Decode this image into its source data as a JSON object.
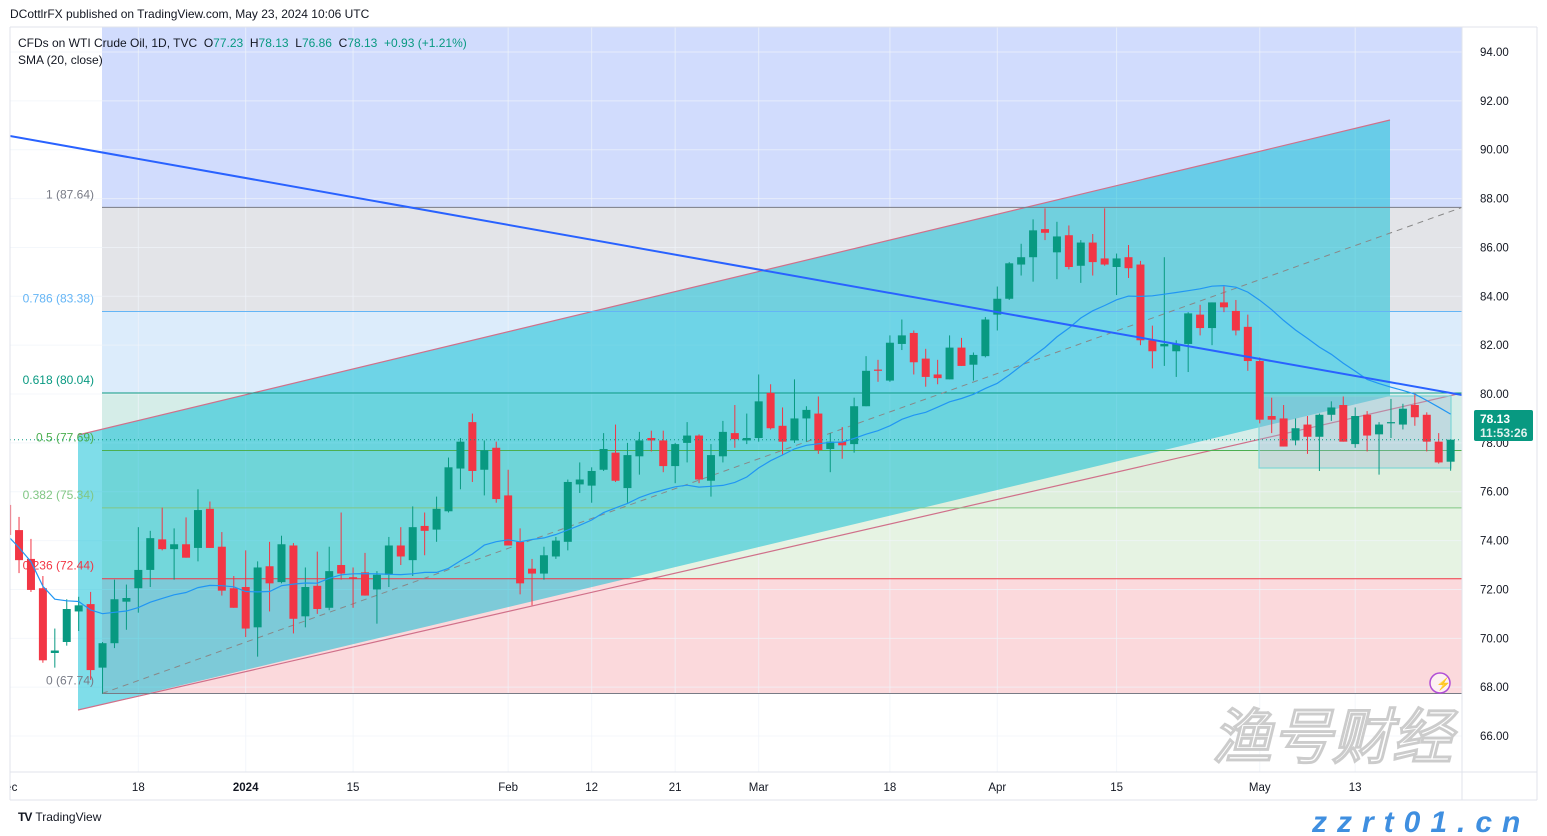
{
  "header": {
    "published": "DCottlrFX published on TradingView.com, May 23, 2024 10:06 UTC"
  },
  "legend": {
    "symbol": "CFDs on WTI Crude Oil, 1D, TVC",
    "open_label": "O",
    "open": "77.23",
    "high_label": "H",
    "high": "78.13",
    "low_label": "L",
    "low": "76.86",
    "close_label": "C",
    "close": "78.13",
    "change": "+0.93 (+1.21%)",
    "indicator": "SMA (20, close)"
  },
  "last_price": {
    "price": "78.13",
    "countdown": "11:53:26",
    "color": "#089981"
  },
  "footer": {
    "brand": "TradingView"
  },
  "watermark": {
    "logo_text": "渔号财经",
    "site": "zzrt01.cn"
  },
  "colors": {
    "up": "#089981",
    "down": "#f23645",
    "sma": "#2196f3",
    "trendline": "#2962ff",
    "channel": "#00bcd4"
  },
  "chart_data": {
    "type": "candlestick",
    "title": "CFDs on WTI Crude Oil, 1D, TVC",
    "ylim": [
      66,
      95
    ],
    "grid": true,
    "price_ticks": [
      "94.00",
      "92.00",
      "90.00",
      "88.00",
      "86.00",
      "84.00",
      "82.00",
      "80.00",
      "78.00",
      "76.00",
      "74.00",
      "72.00",
      "70.00",
      "68.00",
      "66.00"
    ],
    "time_ticks": [
      {
        "label": "Dec",
        "date": "2023-12-01",
        "bold": false
      },
      {
        "label": "18",
        "date": "2023-12-18",
        "bold": false
      },
      {
        "label": "2024",
        "date": "2024-01-02",
        "bold": true
      },
      {
        "label": "15",
        "date": "2024-01-15",
        "bold": false
      },
      {
        "label": "Feb",
        "date": "2024-02-01",
        "bold": false
      },
      {
        "label": "12",
        "date": "2024-02-12",
        "bold": false
      },
      {
        "label": "21",
        "date": "2024-02-21",
        "bold": false
      },
      {
        "label": "Mar",
        "date": "2024-03-01",
        "bold": false
      },
      {
        "label": "18",
        "date": "2024-03-18",
        "bold": false
      },
      {
        "label": "Apr",
        "date": "2024-04-01",
        "bold": false
      },
      {
        "label": "15",
        "date": "2024-04-15",
        "bold": false
      },
      {
        "label": "May",
        "date": "2024-05-01",
        "bold": false
      },
      {
        "label": "13",
        "date": "2024-05-13",
        "bold": false
      }
    ],
    "indicator": {
      "name": "SMA (20, close)",
      "period": 20
    },
    "fib_levels": [
      {
        "ratio": "1",
        "price": 87.64,
        "label": "1 (87.64)",
        "color": "#787b86",
        "fill": "#e3e4e8"
      },
      {
        "ratio": "0.786",
        "price": 83.38,
        "label": "0.786 (83.38)",
        "color": "#64b5f6",
        "fill": "#dcecfb"
      },
      {
        "ratio": "0.618",
        "price": 80.04,
        "label": "0.618 (80.04)",
        "color": "#089981",
        "fill": "#d5ede8"
      },
      {
        "ratio": "0.5",
        "price": 77.69,
        "label": "0.5 (77.69)",
        "color": "#4caf50",
        "fill": "#dfefdd"
      },
      {
        "ratio": "0.382",
        "price": 75.34,
        "label": "0.382 (75.34)",
        "color": "#81c784",
        "fill": "#e6f3e3"
      },
      {
        "ratio": "0.236",
        "price": 72.44,
        "label": "0.236 (72.44)",
        "color": "#f23645",
        "fill": "#fbd9dc"
      },
      {
        "ratio": "0",
        "price": 67.74,
        "label": "0 (67.74)",
        "color": "#787b86",
        "fill": null
      }
    ],
    "fib_upper_fill": "#d1dcfd",
    "bars_columns": [
      "date",
      "open",
      "high",
      "low",
      "close"
    ],
    "bars": [
      [
        "2023-12-01",
        75.46,
        75.5,
        74.0,
        74.23
      ],
      [
        "2023-12-04",
        74.43,
        74.97,
        72.67,
        73.2
      ],
      [
        "2023-12-05",
        73.25,
        74.07,
        71.9,
        71.98
      ],
      [
        "2023-12-06",
        72.05,
        72.55,
        69.0,
        69.1
      ],
      [
        "2023-12-07",
        69.4,
        70.4,
        68.8,
        69.5
      ],
      [
        "2023-12-08",
        69.85,
        71.6,
        69.7,
        71.2
      ],
      [
        "2023-12-11",
        71.1,
        71.7,
        70.3,
        71.35
      ],
      [
        "2023-12-12",
        71.4,
        71.9,
        68.3,
        68.7
      ],
      [
        "2023-12-13",
        68.8,
        69.85,
        67.74,
        69.8
      ],
      [
        "2023-12-14",
        69.8,
        72.4,
        69.6,
        71.6
      ],
      [
        "2023-12-15",
        71.5,
        72.2,
        70.35,
        71.65
      ],
      [
        "2023-12-18",
        72.05,
        74.55,
        71.05,
        72.8
      ],
      [
        "2023-12-19",
        72.8,
        74.4,
        72.1,
        74.1
      ],
      [
        "2023-12-20",
        74.05,
        75.35,
        73.6,
        73.65
      ],
      [
        "2023-12-21",
        73.65,
        74.5,
        72.4,
        73.85
      ],
      [
        "2023-12-22",
        73.85,
        74.95,
        73.3,
        73.3
      ],
      [
        "2023-12-26",
        73.7,
        76.1,
        73.15,
        75.25
      ],
      [
        "2023-12-27",
        75.3,
        75.6,
        73.7,
        73.7
      ],
      [
        "2023-12-28",
        73.75,
        74.35,
        71.75,
        71.95
      ],
      [
        "2023-12-29",
        72.05,
        72.55,
        71.25,
        71.25
      ],
      [
        "2024-01-02",
        72.1,
        73.6,
        70.05,
        70.4
      ],
      [
        "2024-01-03",
        70.45,
        73.15,
        69.25,
        72.9
      ],
      [
        "2024-01-04",
        72.95,
        73.95,
        71.1,
        72.25
      ],
      [
        "2024-01-05",
        72.3,
        74.2,
        72.25,
        73.85
      ],
      [
        "2024-01-08",
        73.8,
        73.9,
        70.2,
        70.8
      ],
      [
        "2024-01-09",
        70.9,
        72.9,
        70.45,
        72.1
      ],
      [
        "2024-01-10",
        72.15,
        73.55,
        71.0,
        71.2
      ],
      [
        "2024-01-11",
        71.25,
        73.75,
        71.15,
        72.75
      ],
      [
        "2024-01-12",
        73.0,
        75.15,
        72.4,
        72.65
      ],
      [
        "2024-01-15",
        72.5,
        72.9,
        71.25,
        72.45
      ],
      [
        "2024-01-16",
        72.7,
        73.5,
        71.75,
        71.75
      ],
      [
        "2024-01-17",
        72.0,
        72.75,
        70.6,
        72.6
      ],
      [
        "2024-01-18",
        72.6,
        74.15,
        72.1,
        73.8
      ],
      [
        "2024-01-19",
        73.8,
        74.55,
        73.0,
        73.35
      ],
      [
        "2024-01-22",
        73.2,
        75.4,
        72.55,
        74.55
      ],
      [
        "2024-01-23",
        74.6,
        75.15,
        73.4,
        74.4
      ],
      [
        "2024-01-24",
        74.45,
        75.8,
        73.95,
        75.3
      ],
      [
        "2024-01-25",
        75.2,
        77.4,
        75.15,
        77.0
      ],
      [
        "2024-01-26",
        76.95,
        78.2,
        76.1,
        78.05
      ],
      [
        "2024-01-29",
        78.85,
        79.2,
        76.4,
        76.85
      ],
      [
        "2024-01-30",
        76.9,
        78.1,
        75.85,
        77.7
      ],
      [
        "2024-01-31",
        77.8,
        78.05,
        75.55,
        75.7
      ],
      [
        "2024-02-01",
        75.85,
        76.9,
        73.8,
        73.8
      ],
      [
        "2024-02-02",
        73.95,
        74.5,
        71.8,
        72.25
      ],
      [
        "2024-02-05",
        72.85,
        73.25,
        71.35,
        72.65
      ],
      [
        "2024-02-06",
        72.65,
        73.75,
        72.4,
        73.4
      ],
      [
        "2024-02-07",
        73.35,
        74.15,
        73.25,
        74.0
      ],
      [
        "2024-02-08",
        73.95,
        76.5,
        73.6,
        76.4
      ],
      [
        "2024-02-09",
        76.3,
        77.2,
        75.95,
        76.5
      ],
      [
        "2024-02-12",
        76.25,
        77.0,
        75.55,
        76.85
      ],
      [
        "2024-02-13",
        76.9,
        78.4,
        76.85,
        77.75
      ],
      [
        "2024-02-14",
        77.6,
        78.75,
        76.4,
        76.45
      ],
      [
        "2024-02-15",
        76.15,
        78.0,
        75.55,
        77.5
      ],
      [
        "2024-02-16",
        77.45,
        78.45,
        76.7,
        78.1
      ],
      [
        "2024-02-19",
        78.2,
        78.5,
        77.65,
        78.1
      ],
      [
        "2024-02-20",
        78.1,
        78.5,
        76.8,
        77.05
      ],
      [
        "2024-02-21",
        77.05,
        78.0,
        76.35,
        77.95
      ],
      [
        "2024-02-22",
        78.0,
        78.85,
        77.2,
        78.3
      ],
      [
        "2024-02-23",
        78.3,
        78.35,
        76.35,
        76.5
      ],
      [
        "2024-02-26",
        76.45,
        77.95,
        75.8,
        77.5
      ],
      [
        "2024-02-27",
        77.45,
        78.9,
        77.2,
        78.45
      ],
      [
        "2024-02-28",
        78.4,
        79.55,
        77.8,
        78.15
      ],
      [
        "2024-02-29",
        78.1,
        79.2,
        77.95,
        78.2
      ],
      [
        "2024-03-01",
        78.2,
        80.8,
        78.05,
        79.7
      ],
      [
        "2024-03-04",
        80.05,
        80.4,
        78.55,
        78.6
      ],
      [
        "2024-03-05",
        78.7,
        79.45,
        77.5,
        78.05
      ],
      [
        "2024-03-06",
        78.1,
        80.6,
        78.0,
        79.0
      ],
      [
        "2024-03-07",
        79.0,
        79.5,
        78.05,
        79.35
      ],
      [
        "2024-03-08",
        79.2,
        79.9,
        77.55,
        77.7
      ],
      [
        "2024-03-11",
        77.75,
        78.4,
        76.8,
        78.05
      ],
      [
        "2024-03-12",
        78.05,
        78.65,
        77.35,
        77.9
      ],
      [
        "2024-03-13",
        77.95,
        79.85,
        77.6,
        79.5
      ],
      [
        "2024-03-14",
        79.5,
        81.55,
        79.5,
        80.95
      ],
      [
        "2024-03-15",
        81.0,
        81.4,
        80.5,
        80.95
      ],
      [
        "2024-03-18",
        80.55,
        82.4,
        80.5,
        82.1
      ],
      [
        "2024-03-19",
        82.05,
        83.05,
        81.8,
        82.4
      ],
      [
        "2024-03-20",
        82.5,
        82.6,
        80.8,
        81.3
      ],
      [
        "2024-03-21",
        81.45,
        81.85,
        80.3,
        80.7
      ],
      [
        "2024-03-22",
        80.8,
        81.4,
        80.4,
        80.65
      ],
      [
        "2024-03-25",
        80.6,
        82.4,
        80.6,
        81.9
      ],
      [
        "2024-03-26",
        81.9,
        82.3,
        81.15,
        81.15
      ],
      [
        "2024-03-27",
        81.2,
        81.7,
        80.55,
        81.6
      ],
      [
        "2024-03-28",
        81.55,
        83.15,
        81.5,
        83.05
      ],
      [
        "2024-04-01",
        83.25,
        84.4,
        82.6,
        83.9
      ],
      [
        "2024-04-02",
        83.9,
        85.4,
        83.85,
        85.35
      ],
      [
        "2024-04-03",
        85.3,
        86.15,
        84.85,
        85.6
      ],
      [
        "2024-04-04",
        85.6,
        87.15,
        84.6,
        86.7
      ],
      [
        "2024-04-05",
        86.75,
        87.6,
        86.3,
        86.6
      ],
      [
        "2024-04-08",
        85.8,
        87.05,
        84.7,
        86.45
      ],
      [
        "2024-04-09",
        86.5,
        86.9,
        85.1,
        85.2
      ],
      [
        "2024-04-10",
        85.25,
        86.3,
        84.55,
        86.2
      ],
      [
        "2024-04-11",
        86.2,
        86.55,
        84.85,
        85.4
      ],
      [
        "2024-04-12",
        85.55,
        87.6,
        85.25,
        85.3
      ],
      [
        "2024-04-15",
        85.2,
        85.75,
        84.05,
        85.55
      ],
      [
        "2024-04-16",
        85.6,
        86.1,
        84.75,
        85.15
      ],
      [
        "2024-04-17",
        85.3,
        85.45,
        82.0,
        82.2
      ],
      [
        "2024-04-18",
        82.2,
        82.8,
        81.05,
        81.75
      ],
      [
        "2024-04-19",
        81.95,
        85.6,
        81.15,
        82.05
      ],
      [
        "2024-04-22",
        81.75,
        82.2,
        80.7,
        82.05
      ],
      [
        "2024-04-23",
        82.05,
        83.35,
        80.9,
        83.3
      ],
      [
        "2024-04-24",
        83.25,
        83.65,
        82.4,
        82.7
      ],
      [
        "2024-04-25",
        82.7,
        83.75,
        82.0,
        83.75
      ],
      [
        "2024-04-26",
        83.75,
        84.4,
        83.35,
        83.55
      ],
      [
        "2024-04-29",
        83.4,
        83.85,
        82.4,
        82.6
      ],
      [
        "2024-04-30",
        82.75,
        83.25,
        80.95,
        81.35
      ],
      [
        "2024-05-01",
        81.35,
        81.5,
        78.8,
        78.95
      ],
      [
        "2024-05-02",
        79.1,
        79.85,
        78.4,
        78.95
      ],
      [
        "2024-05-03",
        79.0,
        79.55,
        77.85,
        77.85
      ],
      [
        "2024-05-06",
        78.1,
        79.0,
        77.9,
        78.6
      ],
      [
        "2024-05-07",
        78.75,
        79.1,
        77.55,
        78.25
      ],
      [
        "2024-05-08",
        78.25,
        79.2,
        76.85,
        79.15
      ],
      [
        "2024-05-09",
        79.15,
        79.7,
        78.9,
        79.45
      ],
      [
        "2024-05-10",
        79.55,
        79.9,
        78.05,
        78.05
      ],
      [
        "2024-05-13",
        77.95,
        79.45,
        77.8,
        79.1
      ],
      [
        "2024-05-14",
        79.15,
        79.3,
        77.65,
        78.3
      ],
      [
        "2024-05-15",
        78.35,
        78.85,
        76.7,
        78.75
      ],
      [
        "2024-05-16",
        78.8,
        79.8,
        78.2,
        78.85
      ],
      [
        "2024-05-17",
        78.75,
        79.6,
        78.55,
        79.4
      ],
      [
        "2024-05-20",
        79.55,
        80.05,
        78.7,
        79.05
      ],
      [
        "2024-05-21",
        79.15,
        79.25,
        77.65,
        78.05
      ],
      [
        "2024-05-22",
        78.05,
        78.4,
        77.15,
        77.2
      ],
      [
        "2024-05-23",
        77.23,
        78.13,
        76.86,
        78.13
      ]
    ]
  }
}
